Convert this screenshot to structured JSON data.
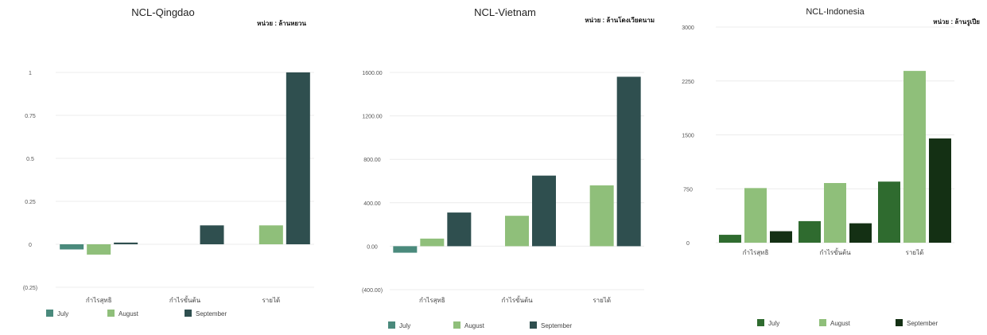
{
  "chart_data": [
    {
      "type": "bar",
      "title": "NCL-Qingdao",
      "unit": "หน่วย : ล้านหยวน",
      "categories": [
        "กำไรสุทธิ",
        "กำไรขั้นต้น",
        "รายได้"
      ],
      "series": [
        {
          "name": "July",
          "color": "#4a8a7c",
          "values": [
            -0.03,
            0,
            0
          ]
        },
        {
          "name": "August",
          "color": "#8fbf7a",
          "values": [
            -0.06,
            0,
            0.11
          ]
        },
        {
          "name": "September",
          "color": "#2f4f4f",
          "values": [
            0.01,
            0.11,
            1.0
          ]
        }
      ],
      "yticks": [
        "(0.25)",
        "0",
        "0.25",
        "0.5",
        "0.75",
        "1"
      ],
      "ylim": [
        -0.25,
        1
      ],
      "grid": true,
      "legend": "bottom-left"
    },
    {
      "type": "bar",
      "title": "NCL-Vietnam",
      "unit": "หน่วย : ล้านโดงเวียดนาม",
      "categories": [
        "กำไรสุทธิ",
        "กำไรขั้นต้น",
        "รายได้"
      ],
      "series": [
        {
          "name": "July",
          "color": "#4a8a7c",
          "values": [
            -60,
            0,
            0
          ]
        },
        {
          "name": "August",
          "color": "#8fbf7a",
          "values": [
            70,
            280,
            560
          ]
        },
        {
          "name": "September",
          "color": "#2f4f4f",
          "values": [
            310,
            650,
            1560
          ]
        }
      ],
      "yticks": [
        "(400.00)",
        "0.00",
        "400.00",
        "800.00",
        "1200.00",
        "1600.00"
      ],
      "ylim": [
        -400,
        1600
      ],
      "grid": true,
      "legend": "bottom-left"
    },
    {
      "type": "bar",
      "title": "NCL-Indonesia",
      "unit": "หน่วย : ล้านรูเปีย",
      "categories": [
        "กำไรสุทธิ",
        "กำไรขั้นต้น",
        "รายได้"
      ],
      "series": [
        {
          "name": "July",
          "color": "#2f6b2f",
          "values": [
            110,
            300,
            850
          ]
        },
        {
          "name": "August",
          "color": "#8fbf7a",
          "values": [
            760,
            830,
            2390
          ]
        },
        {
          "name": "September",
          "color": "#143014",
          "values": [
            160,
            270,
            1450
          ]
        }
      ],
      "yticks": [
        "0",
        "750",
        "1500",
        "2250",
        "3000"
      ],
      "ylim": [
        0,
        3000
      ],
      "grid": true,
      "legend": "bottom-center"
    }
  ]
}
